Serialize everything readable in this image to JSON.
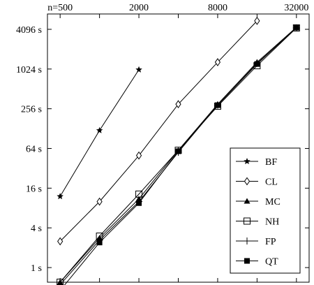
{
  "chart_data": {
    "type": "line",
    "title": "",
    "xlabel": "",
    "ylabel": "",
    "x_scale": "log2",
    "y_scale": "log2",
    "xlim": [
      400,
      40000
    ],
    "ylim": [
      0.6,
      7000
    ],
    "x_ticks": [
      {
        "value": 500,
        "label": "n=500"
      },
      {
        "value": 2000,
        "label": "2000"
      },
      {
        "value": 8000,
        "label": "8000"
      },
      {
        "value": 32000,
        "label": "32000"
      }
    ],
    "x_tick_positions": [
      500,
      1000,
      2000,
      4000,
      8000,
      16000,
      32000
    ],
    "y_ticks": [
      {
        "value": 1,
        "label": "1 s"
      },
      {
        "value": 4,
        "label": "4 s"
      },
      {
        "value": 16,
        "label": "16 s"
      },
      {
        "value": 64,
        "label": "64 s"
      },
      {
        "value": 256,
        "label": "256 s"
      },
      {
        "value": 1024,
        "label": "1024 s"
      },
      {
        "value": 4096,
        "label": "4096 s"
      }
    ],
    "legend_position": "bottom-right",
    "series": [
      {
        "name": "BF",
        "marker": "star",
        "x": [
          500,
          1000,
          2000
        ],
        "y": [
          12,
          120,
          1000
        ]
      },
      {
        "name": "CL",
        "marker": "diamond",
        "x": [
          500,
          1000,
          2000,
          4000,
          8000,
          16000
        ],
        "y": [
          2.5,
          10,
          50,
          300,
          1300,
          5500
        ]
      },
      {
        "name": "MC",
        "marker": "triangle",
        "x": [
          500,
          1000,
          2000,
          4000,
          8000,
          16000,
          32000
        ],
        "y": [
          0.6,
          2.8,
          11,
          60,
          300,
          1300,
          4400
        ]
      },
      {
        "name": "NH",
        "marker": "square-open",
        "x": [
          500,
          1000,
          2000,
          4000,
          8000,
          16000,
          32000
        ],
        "y": [
          0.6,
          3.0,
          13,
          60,
          280,
          1150,
          4300
        ]
      },
      {
        "name": "FP",
        "marker": "plus",
        "x": [
          500,
          1000,
          2000,
          4000,
          8000,
          16000,
          32000
        ],
        "y": [
          0.55,
          2.6,
          10,
          56,
          290,
          1250,
          4300
        ]
      },
      {
        "name": "QT",
        "marker": "square-filled",
        "x": [
          500,
          1000,
          2000,
          4000,
          8000,
          16000,
          32000
        ],
        "y": [
          0.45,
          2.4,
          9.5,
          58,
          290,
          1220,
          4350
        ]
      }
    ]
  }
}
